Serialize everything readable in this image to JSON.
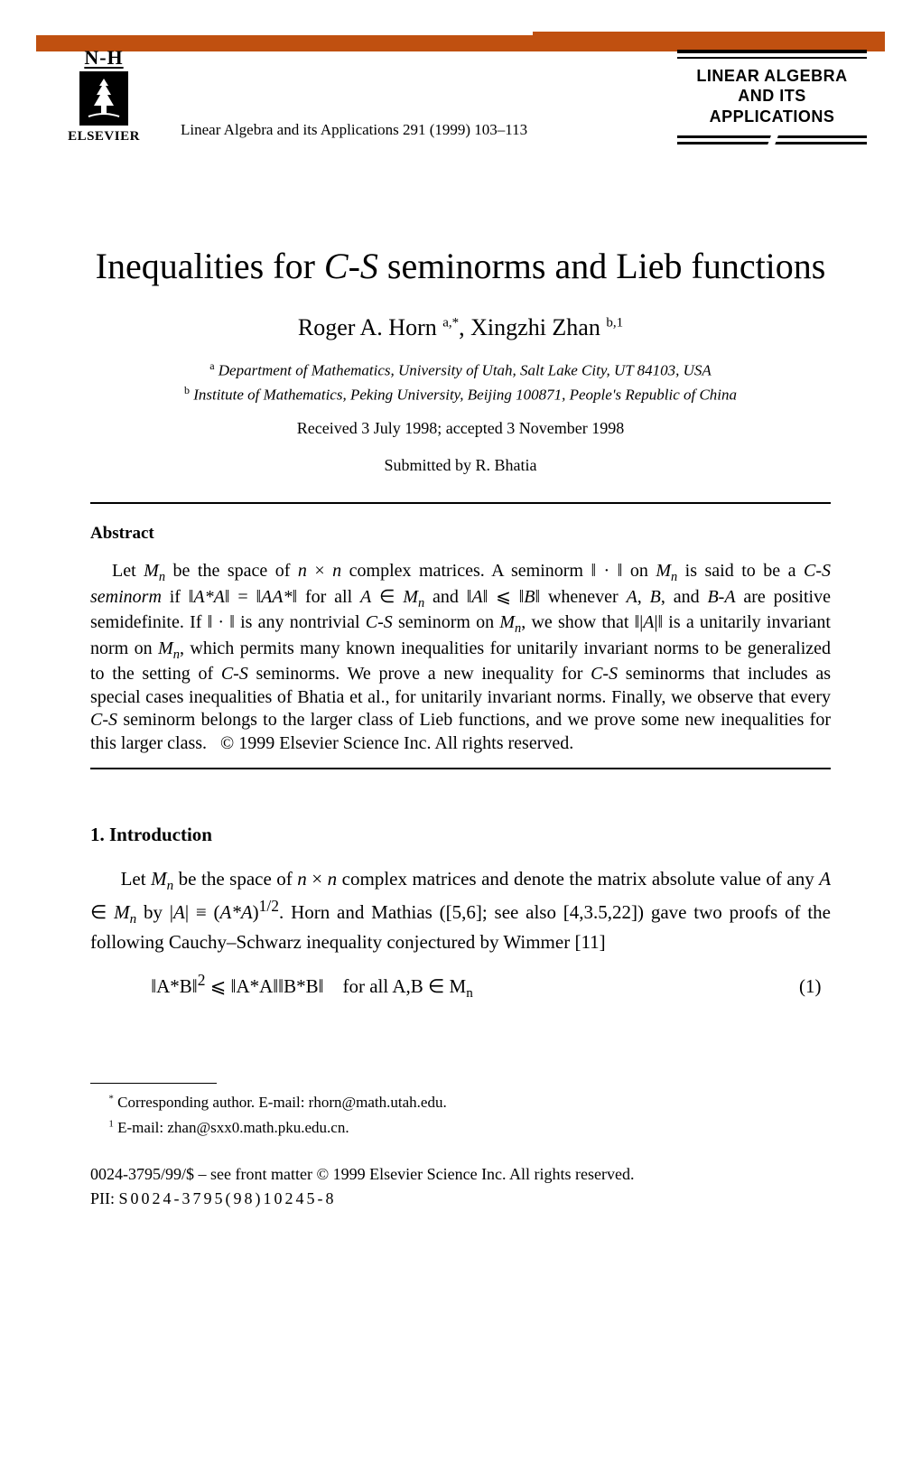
{
  "header": {
    "publisher_top": "N-H",
    "publisher_label": "ELSEVIER",
    "citation": "Linear Algebra and its Applications 291 (1999) 103–113",
    "journal_line1": "LINEAR ALGEBRA",
    "journal_line2": "AND ITS",
    "journal_line3": "APPLICATIONS",
    "bar_color": "#c05010"
  },
  "article": {
    "title_pre": "Inequalities for ",
    "title_it": "C-S",
    "title_post": " seminorms and Lieb functions",
    "author1_name": "Roger A. Horn ",
    "author1_sup": "a,*",
    "author_sep": ", ",
    "author2_name": "Xingzhi Zhan ",
    "author2_sup": "b,1",
    "affil_a_sup": "a",
    "affil_a": " Department of Mathematics, University of Utah, Salt Lake City, UT 84103, USA",
    "affil_b_sup": "b",
    "affil_b": " Institute of Mathematics, Peking University, Beijing 100871, People's Republic of China",
    "dates": "Received 3 July 1998; accepted 3 November 1998",
    "submitted": "Submitted by R. Bhatia"
  },
  "abstract": {
    "heading": "Abstract",
    "body_html": "Let <span class=\"it\">M<sub>n</sub></span> be the space of <span class=\"it\">n</span> × <span class=\"it\">n</span> complex matrices. A seminorm ‖ · ‖ on <span class=\"it\">M<sub>n</sub></span> is said to be a <span class=\"it\">C-S seminorm</span> if ‖<span class=\"it\">A*A</span>‖ = ‖<span class=\"it\">AA*</span>‖ for all <span class=\"it\">A</span> ∈ <span class=\"it\">M<sub>n</sub></span> and ‖<span class=\"it\">A</span>‖ ⩽ ‖<span class=\"it\">B</span>‖ whenever <span class=\"it\">A</span>, <span class=\"it\">B</span>, and <span class=\"it\">B-A</span> are positive semidefinite. If ‖ · ‖ is any nontrivial <span class=\"it\">C-S</span> seminorm on <span class=\"it\">M<sub>n</sub></span>, we show that ‖|<span class=\"it\">A</span>|‖ is a unitarily invariant norm on <span class=\"it\">M<sub>n</sub></span>, which permits many known inequalities for unitarily invariant norms to be generalized to the setting of <span class=\"it\">C-S</span> seminorms. We prove a new inequality for <span class=\"it\">C-S</span> seminorms that includes as special cases inequalities of Bhatia et al., for unitarily invariant norms. Finally, we observe that every <span class=\"it\">C-S</span> seminorm belongs to the larger class of Lieb functions, and we prove some new inequalities for this larger class. &nbsp;&nbsp;© 1999 Elsevier Science Inc. All rights reserved."
  },
  "section1": {
    "heading": "1. Introduction",
    "para1_html": "Let <span class=\"it\">M<sub>n</sub></span> be the space of <span class=\"it\">n</span> × <span class=\"it\">n</span> complex matrices and denote the matrix absolute value of any <span class=\"it\">A</span> ∈ <span class=\"it\">M<sub>n</sub></span> by |<span class=\"it\">A</span>| ≡ (<span class=\"it\">A*A</span>)<sup>1/2</sup>. Horn and Mathias ([5,6]; see also [4,3.5,22]) gave two proofs of the following Cauchy–Schwarz inequality conjectured by Wimmer [11]",
    "eq1_html": "‖<span class=\"it\">A*B</span>‖<sup>2</sup> ⩽ ‖<span class=\"it\">A*A</span>‖‖<span class=\"it\">B*B</span>‖ &nbsp;&nbsp; for all <span class=\"it\">A</span>,<span class=\"it\">B</span> ∈ <span class=\"it\">M<sub>n</sub></span>",
    "eq1_num": "(1)"
  },
  "footnotes": {
    "fn1_sup": "*",
    "fn1": " Corresponding author. E-mail: rhorn@math.utah.edu.",
    "fn2_sup": "1",
    "fn2": " E-mail: zhan@sxx0.math.pku.edu.cn."
  },
  "footer": {
    "copyright": "0024-3795/99/$ – see front matter © 1999 Elsevier Science Inc. All rights reserved.",
    "pii_label": "PII: ",
    "pii": "S0024-3795(98)10245-8"
  }
}
